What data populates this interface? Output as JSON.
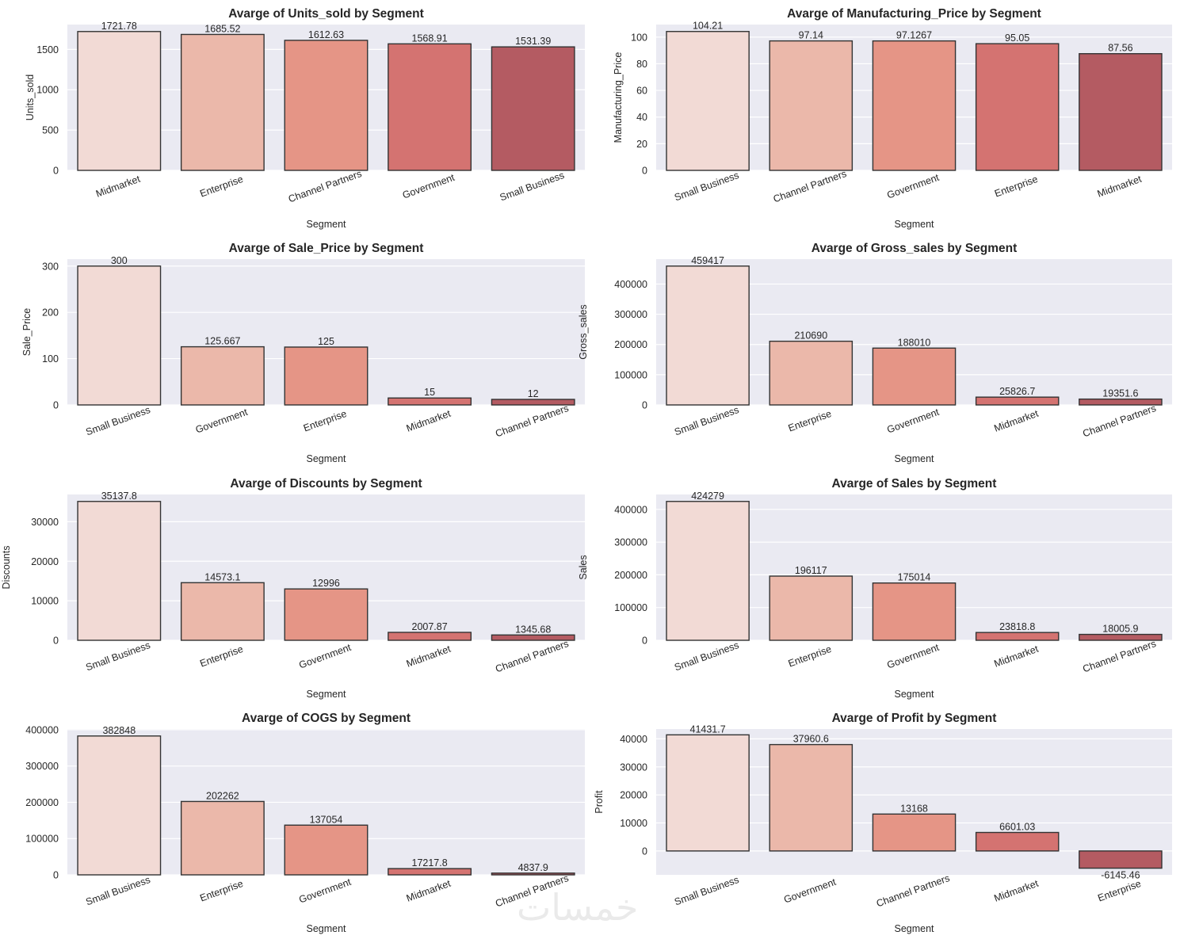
{
  "figure": {
    "palette": [
      "#f2dad5",
      "#ebb8aa",
      "#e59586",
      "#d47371",
      "#b45b62"
    ],
    "watermark": "خمسات"
  },
  "chart_data": [
    {
      "type": "bar",
      "title": "Avarge of Units_sold by Segment",
      "xlabel": "Segment",
      "ylabel": "Units_sold",
      "categories": [
        "Midmarket",
        "Enterprise",
        "Channel Partners",
        "Government",
        "Small Business"
      ],
      "values": [
        1721.78,
        1685.52,
        1612.63,
        1568.91,
        1531.39
      ],
      "labels": [
        "1721.78",
        "1685.52",
        "1612.63",
        "1568.91",
        "1531.39"
      ],
      "yticks": [
        0,
        500,
        1000,
        1500
      ],
      "ylim": [
        0,
        1808
      ],
      "grid": true
    },
    {
      "type": "bar",
      "title": "Avarge of Manufacturing_Price by Segment",
      "xlabel": "Segment",
      "ylabel": "Manufacturing_Price",
      "categories": [
        "Small Business",
        "Channel Partners",
        "Government",
        "Enterprise",
        "Midmarket"
      ],
      "values": [
        104.21,
        97.14,
        97.1267,
        95.05,
        87.56
      ],
      "labels": [
        "104.21",
        "97.14",
        "97.1267",
        "95.05",
        "87.56"
      ],
      "yticks": [
        0,
        20,
        40,
        60,
        80,
        100
      ],
      "ylim": [
        0,
        109.4
      ],
      "grid": true
    },
    {
      "type": "bar",
      "title": "Avarge of Sale_Price by Segment",
      "xlabel": "Segment",
      "ylabel": "Sale_Price",
      "categories": [
        "Small Business",
        "Government",
        "Enterprise",
        "Midmarket",
        "Channel Partners"
      ],
      "values": [
        300,
        125.667,
        125,
        15,
        12
      ],
      "labels": [
        "300",
        "125.667",
        "125",
        "15",
        "12"
      ],
      "yticks": [
        0,
        100,
        200,
        300
      ],
      "ylim": [
        0,
        315
      ],
      "grid": true
    },
    {
      "type": "bar",
      "title": "Avarge of Gross_sales by Segment",
      "xlabel": "Segment",
      "ylabel": "Gross_sales",
      "categories": [
        "Small Business",
        "Enterprise",
        "Government",
        "Midmarket",
        "Channel Partners"
      ],
      "values": [
        459417,
        210690,
        188010,
        25826.7,
        19351.6
      ],
      "labels": [
        "459417",
        "210690",
        "188010",
        "25826.7",
        "19351.6"
      ],
      "yticks": [
        0,
        100000,
        200000,
        300000,
        400000
      ],
      "ylim": [
        0,
        482388
      ],
      "grid": true
    },
    {
      "type": "bar",
      "title": "Avarge of Discounts by Segment",
      "xlabel": "Segment",
      "ylabel": "Discounts",
      "categories": [
        "Small Business",
        "Enterprise",
        "Government",
        "Midmarket",
        "Channel Partners"
      ],
      "values": [
        35137.8,
        14573.1,
        12996,
        2007.87,
        1345.68
      ],
      "labels": [
        "35137.8",
        "14573.1",
        "12996",
        "2007.87",
        "1345.68"
      ],
      "yticks": [
        0,
        10000,
        20000,
        30000
      ],
      "ylim": [
        0,
        36895
      ],
      "grid": true
    },
    {
      "type": "bar",
      "title": "Avarge of Sales by Segment",
      "xlabel": "Segment",
      "ylabel": "Sales",
      "categories": [
        "Small Business",
        "Enterprise",
        "Government",
        "Midmarket",
        "Channel Partners"
      ],
      "values": [
        424279,
        196117,
        175014,
        23818.8,
        18005.9
      ],
      "labels": [
        "424279",
        "196117",
        "175014",
        "23818.8",
        "18005.9"
      ],
      "yticks": [
        0,
        100000,
        200000,
        300000,
        400000
      ],
      "ylim": [
        0,
        445493
      ],
      "grid": true
    },
    {
      "type": "bar",
      "title": "Avarge of COGS by Segment",
      "xlabel": "Segment",
      "ylabel": "COGS",
      "categories": [
        "Small Business",
        "Enterprise",
        "Government",
        "Midmarket",
        "Channel Partners"
      ],
      "values": [
        382848,
        202262,
        137054,
        17217.8,
        4837.9
      ],
      "labels": [
        "382848",
        "202262",
        "137054",
        "17217.8",
        "4837.9"
      ],
      "yticks": [
        0,
        100000,
        200000,
        300000,
        400000
      ],
      "ylim": [
        0,
        401990
      ],
      "grid": true
    },
    {
      "type": "bar",
      "title": "Avarge of Profit by Segment",
      "xlabel": "Segment",
      "ylabel": "Profit",
      "categories": [
        "Small Business",
        "Government",
        "Channel Partners",
        "Midmarket",
        "Enterprise"
      ],
      "values": [
        41431.7,
        37960.6,
        13168,
        6601.03,
        -6145.46
      ],
      "labels": [
        "41431.7",
        "37960.6",
        "13168",
        "6601.03",
        "-6145.46"
      ],
      "yticks": [
        0,
        10000,
        20000,
        30000,
        40000
      ],
      "ylim": [
        -8524,
        43503
      ],
      "grid": true
    }
  ]
}
